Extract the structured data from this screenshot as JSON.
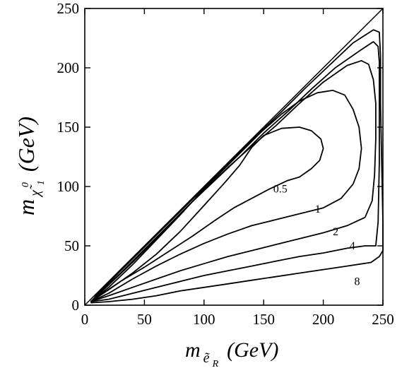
{
  "chart_data": {
    "type": "line",
    "xlabel": {
      "main": "m",
      "sub": "ẽ",
      "subsub": "R",
      "unit": "(GeV)"
    },
    "ylabel": {
      "main": "m",
      "sub": "χ̃",
      "sup": "0",
      "subsub": "1",
      "unit": "(GeV)"
    },
    "xlim": [
      0,
      250
    ],
    "ylim": [
      0,
      250
    ],
    "x_ticks": [
      0,
      50,
      100,
      150,
      200,
      250
    ],
    "y_ticks": [
      0,
      50,
      100,
      150,
      200,
      250
    ],
    "grid": false,
    "reference_line": {
      "from": [
        0,
        0
      ],
      "to": [
        250,
        250
      ]
    },
    "series": [
      {
        "label": "0.5",
        "label_pos": [
          158,
          95
        ],
        "points": [
          [
            5,
            3
          ],
          [
            15,
            10
          ],
          [
            30,
            20
          ],
          [
            50,
            32
          ],
          [
            70,
            45
          ],
          [
            90,
            58
          ],
          [
            110,
            72
          ],
          [
            125,
            82
          ],
          [
            140,
            90
          ],
          [
            155,
            98
          ],
          [
            170,
            105
          ],
          [
            180,
            108
          ],
          [
            190,
            115
          ],
          [
            197,
            122
          ],
          [
            200,
            132
          ],
          [
            198,
            140
          ],
          [
            190,
            147
          ],
          [
            180,
            150
          ],
          [
            165,
            149
          ],
          [
            150,
            143
          ],
          [
            140,
            133
          ],
          [
            130,
            118
          ],
          [
            118,
            104
          ],
          [
            100,
            84
          ],
          [
            80,
            62
          ],
          [
            60,
            43
          ],
          [
            40,
            27
          ],
          [
            20,
            13
          ],
          [
            5,
            3
          ]
        ]
      },
      {
        "label": "1",
        "label_pos": [
          193,
          78
        ],
        "points": [
          [
            5,
            3
          ],
          [
            20,
            10
          ],
          [
            40,
            22
          ],
          [
            60,
            33
          ],
          [
            80,
            43
          ],
          [
            100,
            52
          ],
          [
            120,
            60
          ],
          [
            140,
            67
          ],
          [
            160,
            72
          ],
          [
            180,
            77
          ],
          [
            200,
            82
          ],
          [
            215,
            90
          ],
          [
            225,
            102
          ],
          [
            230,
            115
          ],
          [
            232,
            132
          ],
          [
            230,
            150
          ],
          [
            225,
            165
          ],
          [
            218,
            177
          ],
          [
            208,
            181
          ],
          [
            195,
            179
          ],
          [
            180,
            172
          ],
          [
            165,
            161
          ],
          [
            148,
            146
          ],
          [
            135,
            133
          ],
          [
            120,
            118
          ],
          [
            100,
            98
          ],
          [
            80,
            76
          ],
          [
            60,
            55
          ],
          [
            40,
            34
          ],
          [
            20,
            15
          ],
          [
            5,
            3
          ]
        ]
      },
      {
        "label": "2",
        "label_pos": [
          208,
          59
        ],
        "points": [
          [
            5,
            3
          ],
          [
            20,
            8
          ],
          [
            40,
            15
          ],
          [
            60,
            22
          ],
          [
            80,
            29
          ],
          [
            100,
            35
          ],
          [
            120,
            41
          ],
          [
            140,
            46
          ],
          [
            160,
            51
          ],
          [
            180,
            56
          ],
          [
            200,
            61
          ],
          [
            220,
            67
          ],
          [
            235,
            74
          ],
          [
            241,
            88
          ],
          [
            243,
            110
          ],
          [
            244,
            140
          ],
          [
            244,
            170
          ],
          [
            242,
            190
          ],
          [
            238,
            203
          ],
          [
            232,
            206
          ],
          [
            220,
            202
          ],
          [
            200,
            188
          ],
          [
            180,
            170
          ],
          [
            160,
            151
          ],
          [
            140,
            134
          ],
          [
            120,
            116
          ],
          [
            100,
            97
          ],
          [
            80,
            77
          ],
          [
            60,
            56
          ],
          [
            40,
            36
          ],
          [
            20,
            17
          ],
          [
            5,
            3
          ]
        ]
      },
      {
        "label": "4",
        "label_pos": [
          222,
          47
        ],
        "points": [
          [
            5,
            3
          ],
          [
            20,
            5
          ],
          [
            40,
            10
          ],
          [
            60,
            15
          ],
          [
            80,
            20
          ],
          [
            100,
            25
          ],
          [
            120,
            29
          ],
          [
            140,
            33
          ],
          [
            160,
            37
          ],
          [
            180,
            41
          ],
          [
            200,
            44
          ],
          [
            220,
            48
          ],
          [
            235,
            50
          ],
          [
            244,
            50
          ],
          [
            246,
            70
          ],
          [
            247,
            120
          ],
          [
            247,
            170
          ],
          [
            247,
            205
          ],
          [
            246,
            218
          ],
          [
            242,
            222
          ],
          [
            230,
            214
          ],
          [
            210,
            200
          ],
          [
            190,
            182
          ],
          [
            170,
            163
          ],
          [
            150,
            145
          ],
          [
            130,
            125
          ],
          [
            110,
            106
          ],
          [
            90,
            87
          ],
          [
            70,
            67
          ],
          [
            50,
            47
          ],
          [
            30,
            27
          ],
          [
            15,
            13
          ],
          [
            5,
            3
          ]
        ]
      },
      {
        "label": "8",
        "label_pos": [
          226,
          17
        ],
        "points": [
          [
            5,
            2
          ],
          [
            20,
            3
          ],
          [
            40,
            5
          ],
          [
            60,
            8
          ],
          [
            80,
            12
          ],
          [
            100,
            15
          ],
          [
            120,
            18
          ],
          [
            140,
            21
          ],
          [
            160,
            24
          ],
          [
            180,
            27
          ],
          [
            200,
            30
          ],
          [
            220,
            33
          ],
          [
            240,
            36
          ],
          [
            247,
            41
          ],
          [
            250,
            46
          ],
          [
            250,
            70
          ],
          [
            249,
            120
          ],
          [
            248,
            170
          ],
          [
            248,
            210
          ],
          [
            247,
            230
          ],
          [
            242,
            232
          ],
          [
            225,
            221
          ],
          [
            205,
            202
          ],
          [
            185,
            183
          ],
          [
            165,
            163
          ],
          [
            145,
            144
          ],
          [
            125,
            124
          ],
          [
            105,
            104
          ],
          [
            85,
            84
          ],
          [
            65,
            64
          ],
          [
            45,
            44
          ],
          [
            25,
            24
          ],
          [
            10,
            9
          ],
          [
            5,
            2
          ]
        ]
      }
    ]
  }
}
